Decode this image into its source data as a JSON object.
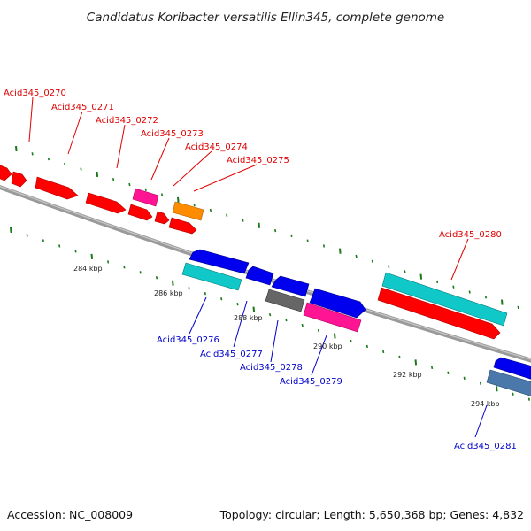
{
  "title": "Candidatus Koribacter versatilis Ellin345, complete genome",
  "footer": {
    "accession": "Accession: NC_008009",
    "topology": "Topology: circular; Length: 5,650,368 bp; Genes: 4,832"
  },
  "colors": {
    "red": "#ff0000",
    "blue": "#0000ee",
    "cyan": "#11c8c8",
    "magenta": "#ff1493",
    "orange": "#ff8c00",
    "gray": "#666666",
    "steelblue": "#4a78aa",
    "backbone": "#8a8a8a",
    "tick": "#1a7a1a",
    "label_top": "#e00000",
    "label_bottom": "#0000cc"
  },
  "kbp_labels": [
    "284 kbp",
    "286 kbp",
    "288 kbp",
    "290 kbp",
    "292 kbp",
    "294 kbp"
  ],
  "gene_labels": {
    "acid0270": "Acid345_0270",
    "acid0271": "Acid345_0271",
    "acid0272": "Acid345_0272",
    "acid0273": "Acid345_0273",
    "acid0274": "Acid345_0274",
    "acid0275": "Acid345_0275",
    "acid0280": "Acid345_0280",
    "acid0276": "Acid345_0276",
    "acid0277": "Acid345_0277",
    "acid0278": "Acid345_0278",
    "acid0279": "Acid345_0279",
    "acid0281": "Acid345_0281"
  }
}
